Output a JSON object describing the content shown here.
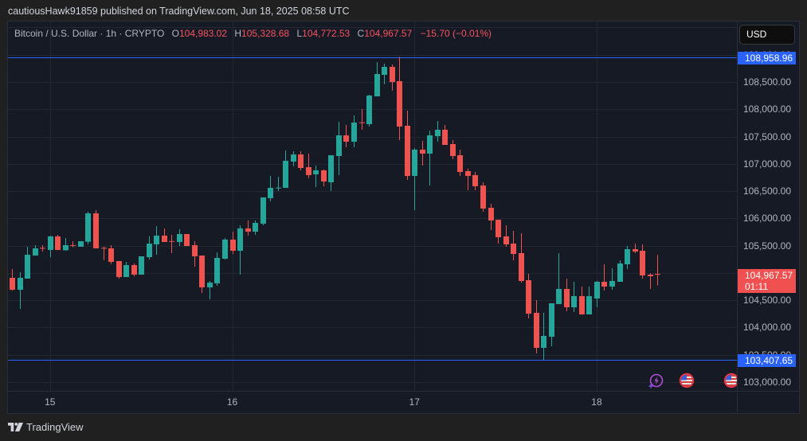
{
  "header": {
    "publish_info": "cautiousHawk91859 published on TradingView.com, Jun 18, 2025 08:58 UTC"
  },
  "legend": {
    "title": "Bitcoin / U.S. Dollar · 1h · CRYPTO",
    "open_label": "O",
    "open": "104,983.02",
    "high_label": "H",
    "high": "105,328.68",
    "low_label": "L",
    "low": "104,772.53",
    "close_label": "C",
    "close": "104,967.57",
    "change": "−15.70 (−0.01%)",
    "value_color": "#f7525f"
  },
  "price_axis": {
    "currency": "USD"
  },
  "events": [
    {
      "icon": "lightning-icon",
      "color": "#b04dd6"
    },
    {
      "icon": "us-flag-icon",
      "color": "#f23645"
    },
    {
      "icon": "us-flag-icon",
      "color": "#f23645"
    }
  ],
  "footer": {
    "brand": "TradingView"
  },
  "chart_data": {
    "type": "candlestick",
    "title": "Bitcoin / U.S. Dollar · 1h · CRYPTO",
    "symbol": "Bitcoin / U.S. Dollar",
    "interval": "1h",
    "exchange": "CRYPTO",
    "xlabel": "",
    "ylabel": "USD",
    "legend_position": "top-left",
    "grid_on": true,
    "ylim": [
      102839,
      109609
    ],
    "x_ticks": [
      {
        "label": "15",
        "hour": 0
      },
      {
        "label": "16",
        "hour": 24
      },
      {
        "label": "17",
        "hour": 48
      },
      {
        "label": "18",
        "hour": 72
      }
    ],
    "first_candle_hour": -5,
    "candle_fields": [
      "open",
      "high",
      "low",
      "close"
    ],
    "candles": [
      [
        104911,
        105071,
        104678,
        104692
      ],
      [
        104692,
        105013,
        104342,
        104911
      ],
      [
        104896,
        105480,
        104896,
        105334
      ],
      [
        105319,
        105509,
        105319,
        105451
      ],
      [
        105460,
        105509,
        105392,
        105445
      ],
      [
        105421,
        105684,
        105290,
        105670
      ],
      [
        105670,
        105699,
        105421,
        105421
      ],
      [
        105415,
        105640,
        105410,
        105509
      ],
      [
        105510,
        105582,
        105470,
        105500
      ],
      [
        105480,
        105582,
        105480,
        105582
      ],
      [
        105572,
        106122,
        105528,
        106093
      ],
      [
        106093,
        106151,
        105451,
        105451
      ],
      [
        105460,
        105480,
        105237,
        105450
      ],
      [
        105451,
        105509,
        105164,
        105203
      ],
      [
        105218,
        105218,
        104896,
        104925
      ],
      [
        104925,
        105203,
        104925,
        105144
      ],
      [
        105144,
        105174,
        104940,
        104969
      ],
      [
        104969,
        105305,
        104969,
        105305
      ],
      [
        105290,
        105670,
        105246,
        105538
      ],
      [
        105524,
        105859,
        105334,
        105684
      ],
      [
        105684,
        105816,
        105567,
        105567
      ],
      [
        105585,
        105699,
        105363,
        105575
      ],
      [
        105567,
        105801,
        105494,
        105713
      ],
      [
        105713,
        105713,
        105494,
        105494
      ],
      [
        105509,
        105582,
        105115,
        105305
      ],
      [
        105319,
        105319,
        104634,
        104736
      ],
      [
        104736,
        104853,
        104517,
        104823
      ],
      [
        104809,
        105378,
        104765,
        105276
      ],
      [
        105261,
        105640,
        105246,
        105611
      ],
      [
        105611,
        105757,
        105349,
        105407
      ],
      [
        105407,
        105874,
        104969,
        105816
      ],
      [
        105816,
        105961,
        105684,
        105757
      ],
      [
        105757,
        105961,
        105699,
        105918
      ],
      [
        105903,
        106385,
        105874,
        106385
      ],
      [
        106370,
        106778,
        106312,
        106560
      ],
      [
        106550,
        106764,
        106501,
        106565
      ],
      [
        106560,
        107245,
        106560,
        107056
      ],
      [
        107041,
        107231,
        106953,
        107172
      ],
      [
        107172,
        107231,
        106881,
        106924
      ],
      [
        106939,
        107187,
        106735,
        106793
      ],
      [
        106808,
        106968,
        106574,
        106881
      ],
      [
        106881,
        106895,
        106589,
        106676
      ],
      [
        106662,
        107158,
        106501,
        107158
      ],
      [
        107143,
        107771,
        106793,
        107522
      ],
      [
        107522,
        107712,
        107304,
        107406
      ],
      [
        107406,
        107887,
        107304,
        107756
      ],
      [
        107760,
        108004,
        107625,
        107750
      ],
      [
        107727,
        108267,
        107683,
        108252
      ],
      [
        108237,
        108865,
        108237,
        108646
      ],
      [
        108631,
        108836,
        108456,
        108777
      ],
      [
        108777,
        108821,
        108340,
        108500
      ],
      [
        108515,
        108958.96,
        107435,
        107683
      ],
      [
        107698,
        107975,
        106705,
        106778
      ],
      [
        106778,
        107289,
        106151,
        107260
      ],
      [
        107260,
        107420,
        106968,
        107187
      ],
      [
        107187,
        107610,
        106603,
        107522
      ],
      [
        107508,
        107785,
        107406,
        107625
      ],
      [
        107625,
        107712,
        107347,
        107347
      ],
      [
        107362,
        107435,
        107085,
        107143
      ],
      [
        107158,
        107260,
        106778,
        106851
      ],
      [
        106866,
        106910,
        106516,
        106778
      ],
      [
        106793,
        106851,
        106516,
        106589
      ],
      [
        106603,
        106662,
        106122,
        106180
      ],
      [
        106195,
        106268,
        105786,
        105961
      ],
      [
        105976,
        105976,
        105538,
        105655
      ],
      [
        105670,
        105874,
        105480,
        105524
      ],
      [
        105538,
        105772,
        105232,
        105349
      ],
      [
        105363,
        105728,
        104823,
        104853
      ],
      [
        104867,
        104984,
        104167,
        104254
      ],
      [
        104269,
        104503,
        103525,
        103627
      ],
      [
        103627,
        104269,
        103407.65,
        103846
      ],
      [
        103831,
        104444,
        103656,
        104444
      ],
      [
        104429,
        105363,
        104429,
        104707
      ],
      [
        104707,
        104896,
        104298,
        104371
      ],
      [
        104371,
        104838,
        104284,
        104575
      ],
      [
        104575,
        104750,
        104240,
        104240
      ],
      [
        104240,
        104750,
        104240,
        104575
      ],
      [
        104532,
        104853,
        104371,
        104838
      ],
      [
        104838,
        105159,
        104678,
        104750
      ],
      [
        104750,
        105086,
        104692,
        104853
      ],
      [
        104838,
        105232,
        104838,
        105174
      ],
      [
        105159,
        105494,
        105071,
        105436
      ],
      [
        105436,
        105538,
        105363,
        105392
      ],
      [
        105407,
        105524,
        104896,
        104955
      ],
      [
        104969,
        104998,
        104707,
        104940
      ],
      [
        104983.02,
        105328.68,
        104772.53,
        104967.57
      ]
    ],
    "y_ticks": [
      {
        "value": 109000,
        "label": "109,000.00"
      },
      {
        "value": 108500,
        "label": "108,500.00"
      },
      {
        "value": 108000,
        "label": "108,000.00"
      },
      {
        "value": 107500,
        "label": "107,500.00"
      },
      {
        "value": 107000,
        "label": "107,000.00"
      },
      {
        "value": 106500,
        "label": "106,500.00"
      },
      {
        "value": 106000,
        "label": "106,000.00"
      },
      {
        "value": 105500,
        "label": "105,500.00"
      },
      {
        "value": 104500,
        "label": "104,500.00"
      },
      {
        "value": 104000,
        "label": "104,000.00"
      },
      {
        "value": 103500,
        "label": "103,500.00"
      },
      {
        "value": 103000,
        "label": "103,000.00"
      }
    ],
    "grid": {
      "price_min": 103000,
      "price_max": 109500,
      "price_step": 500
    },
    "price_lines": [
      {
        "value": 108958.96,
        "label": "108,958.96",
        "color": "#2962ff"
      },
      {
        "value": 103407.65,
        "label": "103,407.65",
        "color": "#2962ff"
      }
    ],
    "current_price": {
      "value": 104967.57,
      "label": "104,967.57",
      "countdown": "01:11",
      "color": "#f0504f"
    },
    "colors": {
      "up": "#26a69a",
      "down": "#ef5350"
    }
  }
}
